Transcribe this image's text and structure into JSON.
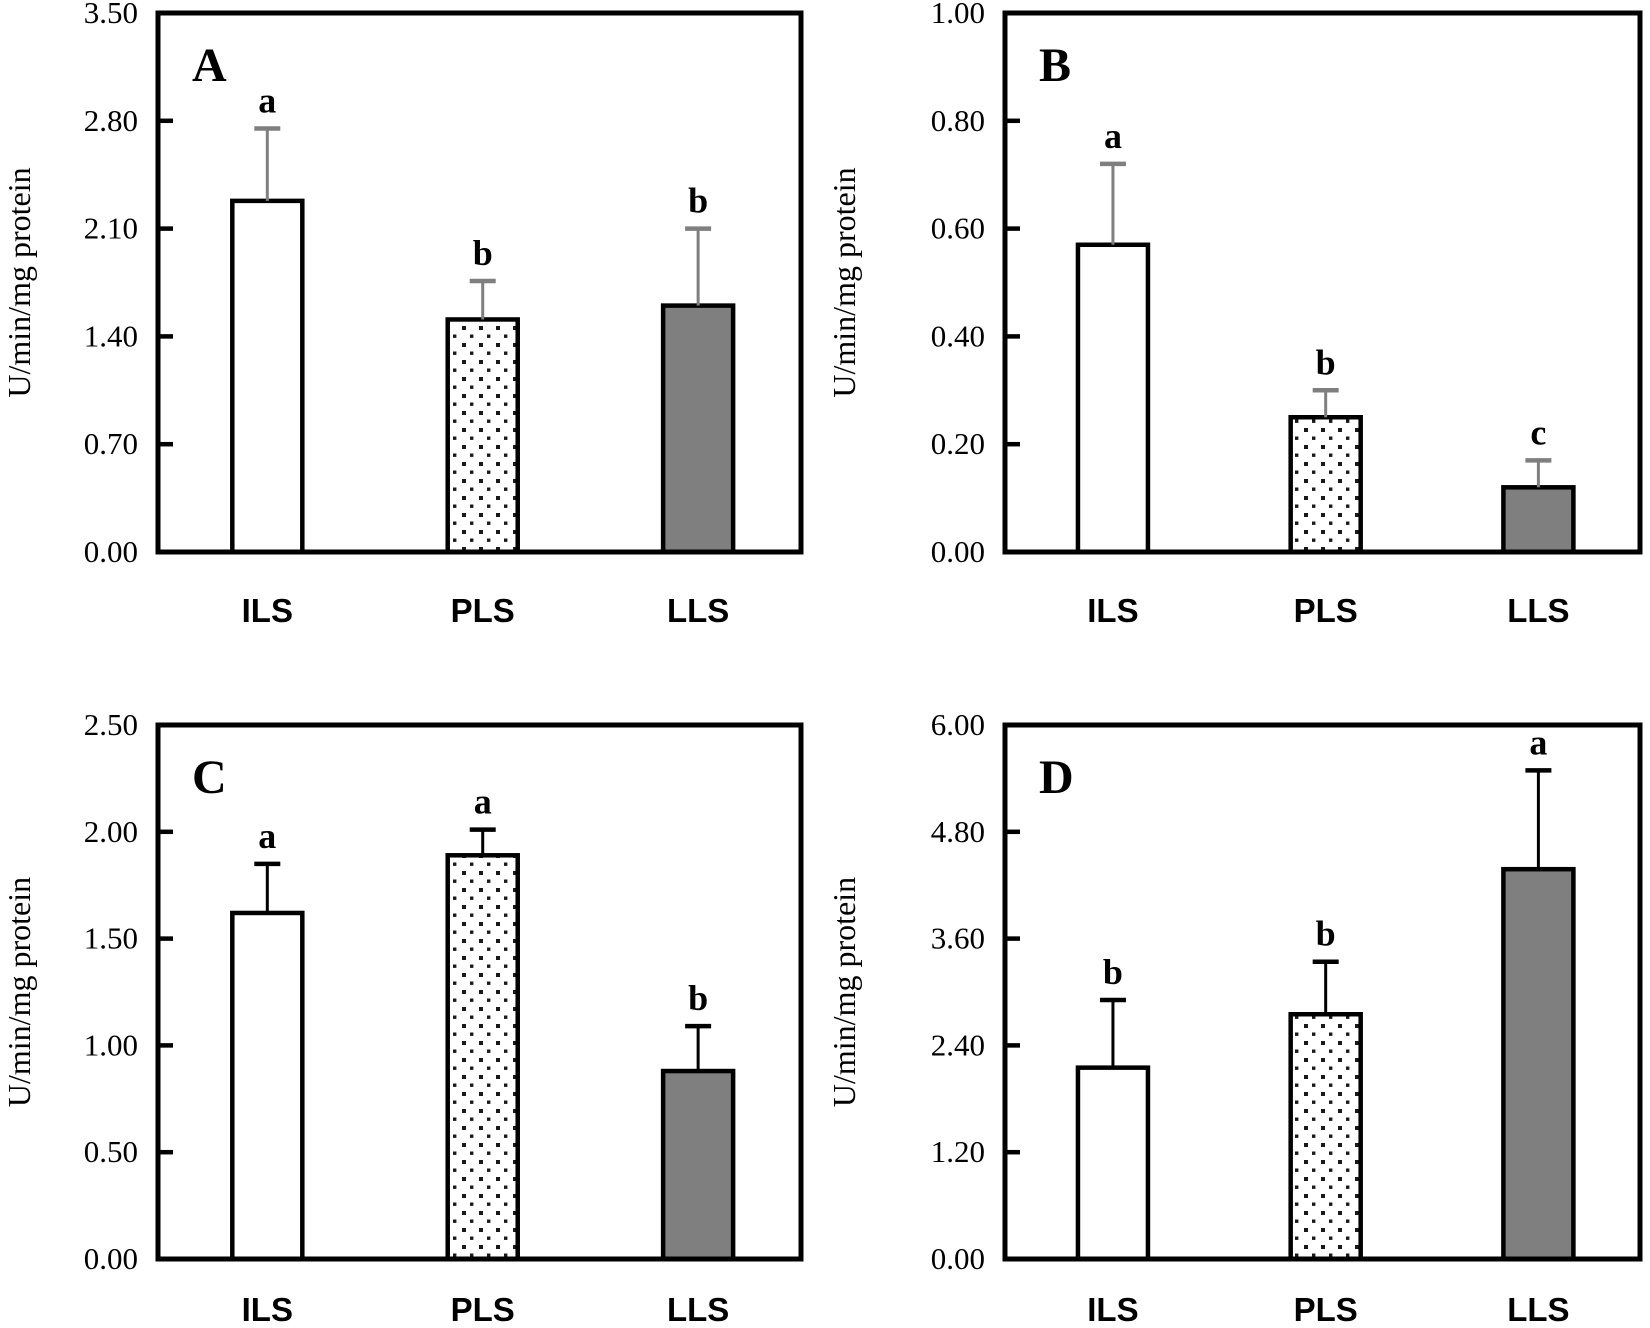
{
  "figure": {
    "y_axis_title": "U/min/mg protein",
    "categories": [
      "ILS",
      "PLS",
      "LLS"
    ],
    "bar_fills": [
      "#ffffff",
      "dot-pattern",
      "#7f7f7f"
    ],
    "bar_border_color": "#000000",
    "axis_color": "#000000",
    "background_color": "#ffffff",
    "dot_pattern_color": "#1a1a1a"
  },
  "chart_data": [
    {
      "type": "bar",
      "panel_label": "A",
      "ylabel": "U/min/mg protein",
      "categories": [
        "ILS",
        "PLS",
        "LLS"
      ],
      "values": [
        2.28,
        1.51,
        1.6
      ],
      "error_plus": [
        0.47,
        0.25,
        0.5
      ],
      "sig_letters": [
        "a",
        "b",
        "b"
      ],
      "ylim": [
        0,
        3.5
      ],
      "ytick_labels": [
        "0.00",
        "0.70",
        "1.40",
        "2.10",
        "2.80",
        "3.50"
      ],
      "ytick_values": [
        0,
        0.7,
        1.4,
        2.1,
        2.8,
        3.5
      ],
      "error_color": "#7f7f7f",
      "grid": false,
      "legend": "none"
    },
    {
      "type": "bar",
      "panel_label": "B",
      "ylabel": "U/min/mg protein",
      "categories": [
        "ILS",
        "PLS",
        "LLS"
      ],
      "values": [
        0.57,
        0.25,
        0.12
      ],
      "error_plus": [
        0.15,
        0.05,
        0.05
      ],
      "sig_letters": [
        "a",
        "b",
        "c"
      ],
      "ylim": [
        0,
        1.0
      ],
      "ytick_labels": [
        "0.00",
        "0.20",
        "0.40",
        "0.60",
        "0.80",
        "1.00"
      ],
      "ytick_values": [
        0,
        0.2,
        0.4,
        0.6,
        0.8,
        1.0
      ],
      "error_color": "#7f7f7f",
      "grid": false,
      "legend": "none"
    },
    {
      "type": "bar",
      "panel_label": "C",
      "ylabel": "U/min/mg protein",
      "categories": [
        "ILS",
        "PLS",
        "LLS"
      ],
      "values": [
        1.62,
        1.89,
        0.88
      ],
      "error_plus": [
        0.23,
        0.12,
        0.21
      ],
      "sig_letters": [
        "a",
        "a",
        "b"
      ],
      "ylim": [
        0,
        2.5
      ],
      "ytick_labels": [
        "0.00",
        "0.50",
        "1.00",
        "1.50",
        "2.00",
        "2.50"
      ],
      "ytick_values": [
        0,
        0.5,
        1.0,
        1.5,
        2.0,
        2.5
      ],
      "error_color": "#000000",
      "grid": false,
      "legend": "none"
    },
    {
      "type": "bar",
      "panel_label": "D",
      "ylabel": "U/min/mg protein",
      "categories": [
        "ILS",
        "PLS",
        "LLS"
      ],
      "values": [
        2.15,
        2.75,
        4.38
      ],
      "error_plus": [
        0.76,
        0.59,
        1.11
      ],
      "sig_letters": [
        "b",
        "b",
        "a"
      ],
      "ylim": [
        0,
        6.0
      ],
      "ytick_labels": [
        "0.00",
        "1.20",
        "2.40",
        "3.60",
        "4.80",
        "6.00"
      ],
      "ytick_values": [
        0,
        1.2,
        2.4,
        3.6,
        4.8,
        6.0
      ],
      "error_color": "#000000",
      "grid": false,
      "legend": "none"
    }
  ]
}
